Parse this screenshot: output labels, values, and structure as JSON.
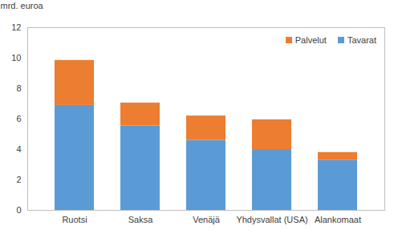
{
  "chart_data": {
    "type": "bar",
    "stacked": true,
    "y_label": "mrd. euroa",
    "categories": [
      "Ruotsi",
      "Saksa",
      "Venäjä",
      "Yhdysvallat (USA)",
      "Alankomaat"
    ],
    "series": [
      {
        "name": "Tavarat",
        "color": "#5b9bd5",
        "values": [
          6.9,
          5.55,
          4.6,
          4.0,
          3.3
        ]
      },
      {
        "name": "Palvelut",
        "color": "#ed7d31",
        "values": [
          2.95,
          1.5,
          1.6,
          1.95,
          0.5
        ]
      }
    ],
    "ylim": [
      0,
      12
    ],
    "yticks": [
      0,
      2,
      4,
      6,
      8,
      10,
      12
    ],
    "grid": false,
    "legend": "top-right"
  }
}
